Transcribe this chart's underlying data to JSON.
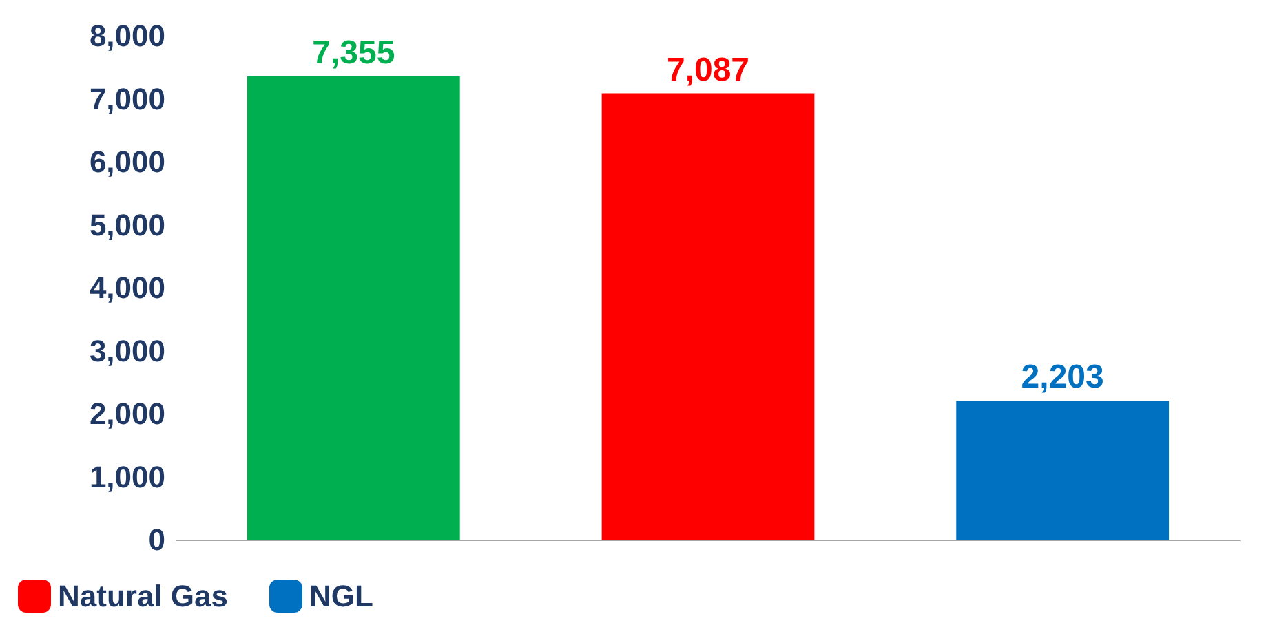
{
  "chart_data": {
    "type": "bar",
    "categories": [
      null,
      null,
      null
    ],
    "series": [
      {
        "color": "#00b050",
        "values": [
          7355,
          null,
          null
        ],
        "value_labels": [
          "7,355",
          null,
          null
        ]
      },
      {
        "name": "Natural Gas",
        "color": "#ff0000",
        "values": [
          null,
          7087,
          null
        ],
        "value_labels": [
          null,
          "7,087",
          null
        ]
      },
      {
        "name": "NGL",
        "color": "#0070c0",
        "values": [
          null,
          null,
          2203
        ],
        "value_labels": [
          null,
          null,
          "2,203"
        ]
      }
    ],
    "ylim": [
      0,
      8000
    ],
    "yticks": [
      0,
      {
        "value": 1000,
        "label": "1,000"
      },
      {
        "value": 2000,
        "label": "2,000"
      },
      {
        "value": 3000,
        "label": "3,000"
      },
      {
        "value": 4000,
        "label": "4,000"
      },
      {
        "value": 5000,
        "label": "5,000"
      },
      {
        "value": 6000,
        "label": "6,000"
      },
      {
        "value": 7000,
        "label": "7,000"
      },
      {
        "value": 8000,
        "label": "8,000"
      }
    ],
    "grid": false,
    "legend": "bottom left"
  }
}
